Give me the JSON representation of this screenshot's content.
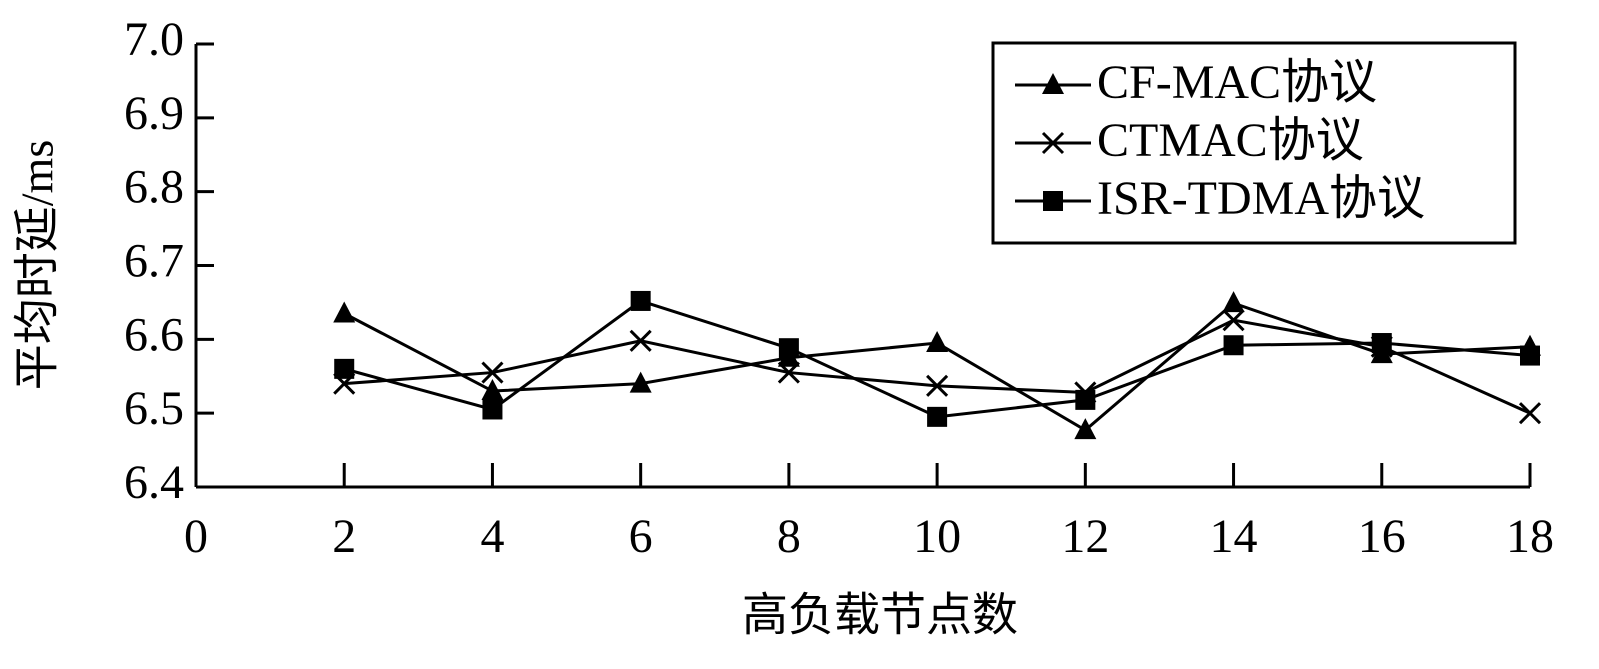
{
  "chart_data": {
    "type": "line",
    "x_label": "高负载节点数",
    "y_label": "平均时延/ms",
    "x": [
      2,
      4,
      6,
      8,
      10,
      12,
      14,
      16,
      18
    ],
    "series": [
      {
        "name": "CF-MAC协议",
        "color": "#000000",
        "marker": "triangle",
        "values": [
          6.635,
          6.53,
          6.54,
          6.575,
          6.595,
          6.477,
          6.649,
          6.58,
          6.59
        ]
      },
      {
        "name": "CTMAC协议",
        "color": "#000000",
        "marker": "x",
        "values": [
          6.54,
          6.555,
          6.598,
          6.555,
          6.537,
          6.528,
          6.626,
          6.59,
          6.5
        ]
      },
      {
        "name": "ISR-TDMA协议",
        "color": "#000000",
        "marker": "square",
        "values": [
          6.56,
          6.505,
          6.652,
          6.588,
          6.495,
          6.518,
          6.592,
          6.595,
          6.578
        ]
      }
    ],
    "xlim": [
      0,
      18
    ],
    "xticks": [
      0,
      2,
      4,
      6,
      8,
      10,
      12,
      14,
      16,
      18
    ],
    "ylim": [
      6.4,
      7.0
    ],
    "yticks": [
      {
        "value": 6.4,
        "label": "6.4"
      },
      {
        "value": 6.5,
        "label": "6.5"
      },
      {
        "value": 6.6,
        "label": "6.6"
      },
      {
        "value": 6.7,
        "label": "6.7"
      },
      {
        "value": 6.8,
        "label": "6.8"
      },
      {
        "value": 6.9,
        "label": "6.9"
      },
      {
        "value": 7.0,
        "label": "7.0"
      }
    ],
    "legend": "upper right"
  }
}
